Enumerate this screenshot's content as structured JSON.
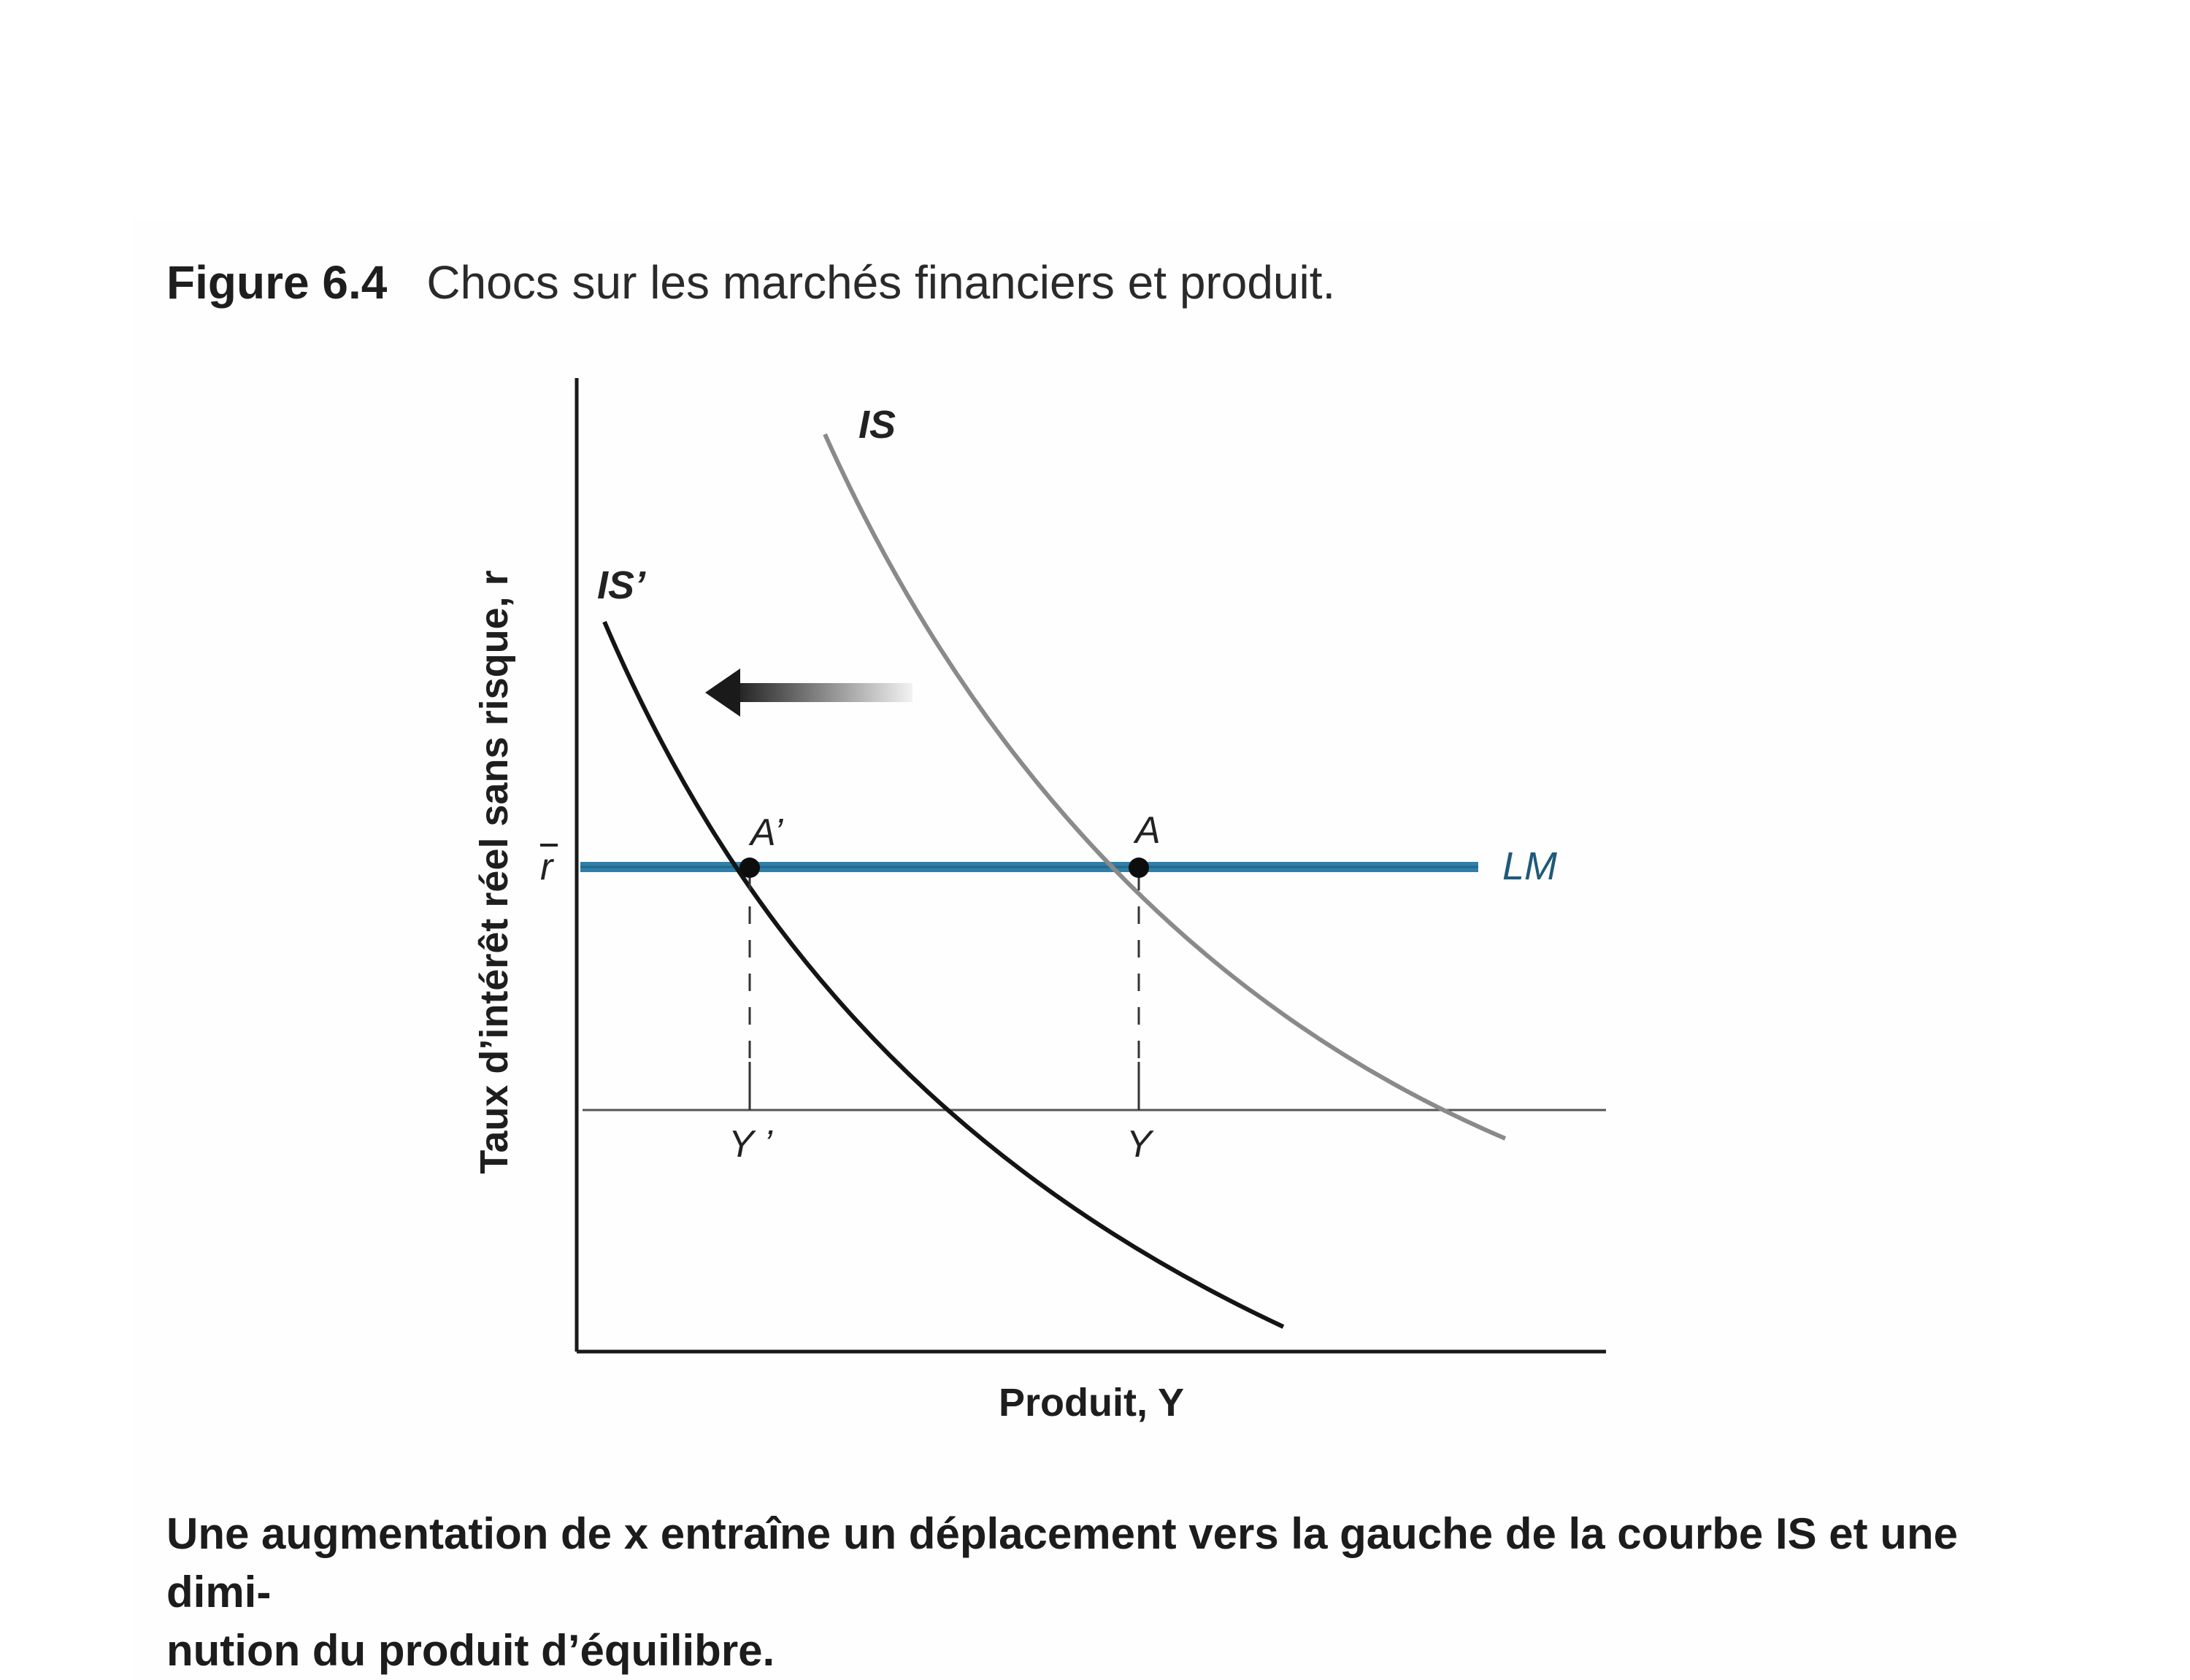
{
  "figure": {
    "number": "Figure 6.4",
    "title": "Chocs sur les marchés financiers et produit."
  },
  "diagram": {
    "y_axis_label": "Taux d’intérêt réel sans risque, r",
    "x_axis_label": "Produit, Y",
    "r_bar_label": "r",
    "curves": {
      "is_label": "IS",
      "is_prime_label": "IS’",
      "lm_label": "LM"
    },
    "points": {
      "a_label": "A",
      "a_prime_label": "A’"
    },
    "ticks": {
      "y_label": "Y",
      "y_prime_label": "Y ’"
    },
    "shift_direction": "left",
    "colors": {
      "lm": "#2f7fa8",
      "is_old": "#8a8a8a",
      "is_new": "#141414",
      "axis": "#1a1a1a"
    }
  },
  "caption": {
    "line1": "Une augmentation de x entraîne un déplacement vers la gauche de la courbe IS et une dimi-",
    "line2": "nution du produit d’équilibre."
  }
}
